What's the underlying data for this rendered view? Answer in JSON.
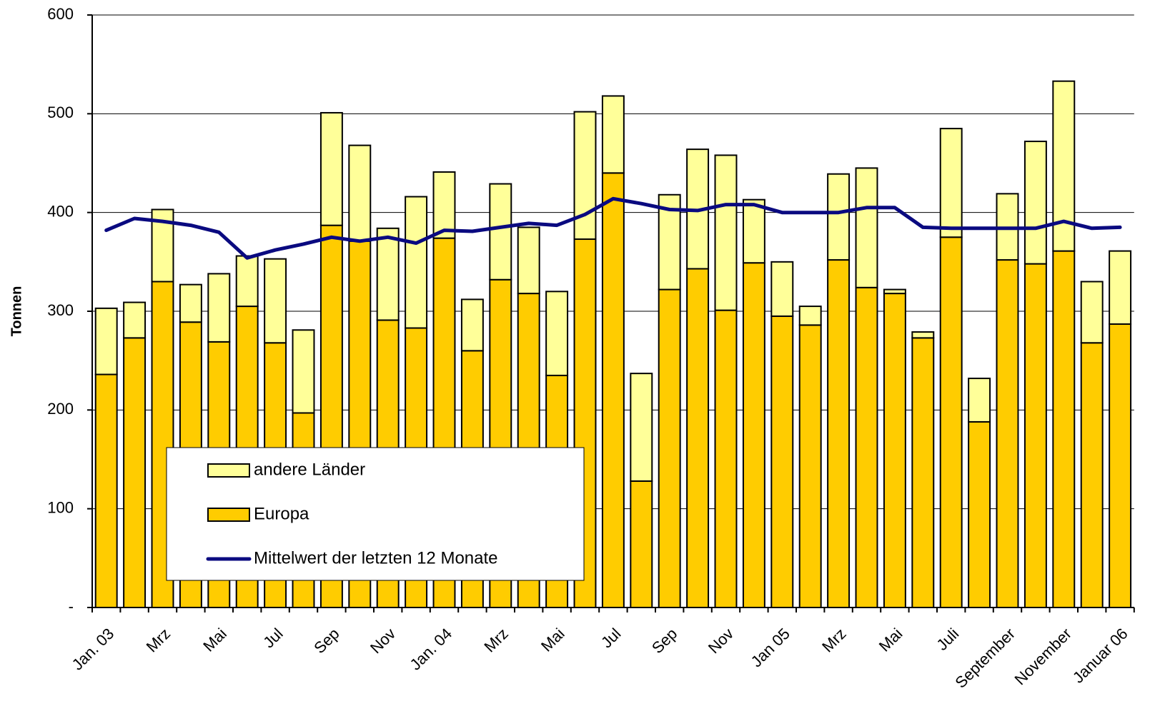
{
  "chart_data": {
    "type": "bar",
    "stacked": true,
    "y_label": "Tonnen",
    "categories": [
      "Jan. 03",
      null,
      "Mrz",
      null,
      "Mai",
      null,
      "Jul",
      null,
      "Sep",
      null,
      "Nov",
      null,
      "Jan. 04",
      null,
      "Mrz",
      null,
      "Mai",
      null,
      "Jul",
      null,
      "Sep",
      null,
      "Nov",
      null,
      "Jan 05",
      null,
      "Mrz",
      null,
      "Mai",
      null,
      "Juli",
      null,
      "September",
      null,
      "November",
      null,
      "Januar 06"
    ],
    "series": [
      {
        "name": "Europa",
        "type": "bar",
        "color": "#FFCC00",
        "values": [
          236,
          273,
          330,
          289,
          269,
          305,
          268,
          197,
          387,
          371,
          291,
          283,
          374,
          260,
          332,
          318,
          235,
          373,
          440,
          128,
          322,
          343,
          301,
          349,
          295,
          286,
          352,
          324,
          318,
          273,
          375,
          188,
          352,
          348,
          361,
          268,
          287
        ]
      },
      {
        "name": "andere Länder",
        "type": "bar",
        "color": "#FFFF99",
        "values": [
          67,
          36,
          73,
          38,
          69,
          51,
          85,
          84,
          114,
          97,
          93,
          133,
          67,
          52,
          97,
          67,
          85,
          129,
          78,
          109,
          96,
          121,
          157,
          64,
          55,
          19,
          87,
          121,
          4,
          6,
          110,
          44,
          67,
          124,
          172,
          62,
          74
        ]
      },
      {
        "name": "Mittelwert der letzten 12 Monate",
        "type": "line",
        "color": "#0A0A80",
        "values": [
          382,
          394,
          391,
          387,
          380,
          354,
          362,
          368,
          375,
          371,
          375,
          369,
          382,
          381,
          385,
          389,
          387,
          398,
          414,
          409,
          403,
          402,
          408,
          408,
          400,
          400,
          400,
          405,
          405,
          385,
          384,
          384,
          384,
          384,
          391,
          384,
          385
        ]
      }
    ],
    "ylim": [
      0,
      600
    ],
    "yticks": [
      {
        "value": 0,
        "label": "-"
      },
      100,
      200,
      300,
      400,
      500,
      600
    ],
    "grid": true,
    "legend": "lower-left"
  }
}
